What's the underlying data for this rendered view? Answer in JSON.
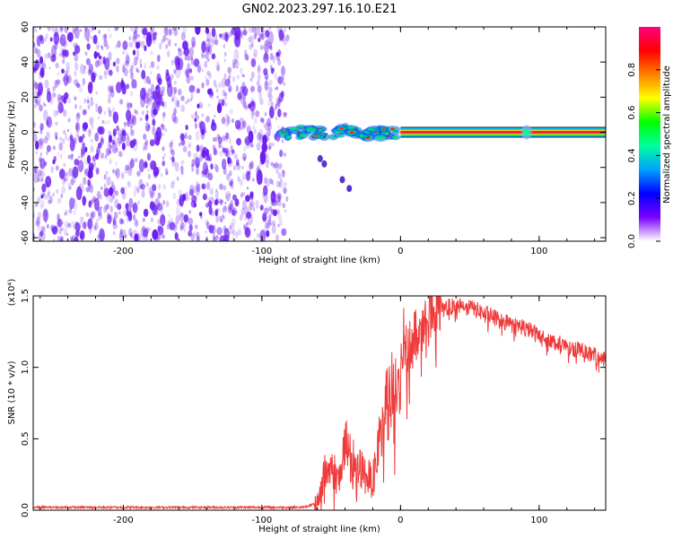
{
  "title": "GN02.2023.297.16.10.E21",
  "colors": {
    "snr_line": "#ef3a3a",
    "spectrogram_dots": "#6b1cf0",
    "frame": "#000000"
  },
  "chart_data": [
    {
      "type": "heatmap",
      "xlabel": "Height of straight line (km)",
      "ylabel": "Frequency (Hz)",
      "xlim": [
        -265,
        148
      ],
      "ylim": [
        -62,
        60
      ],
      "x_ticks": [
        "-200",
        "-100",
        "0",
        "100"
      ],
      "x_tick_values": [
        -200,
        -100,
        0,
        100
      ],
      "y_ticks": [
        "60",
        "40",
        "20",
        "0",
        "-20",
        "-40",
        "-60"
      ],
      "y_tick_values": [
        60,
        40,
        20,
        0,
        -20,
        -40,
        -60
      ],
      "colorbar": {
        "label": "Normalized spectral amplitude",
        "range": [
          0,
          1
        ],
        "ticks": [
          "0.0",
          "0.2",
          "0.4",
          "0.6",
          "0.8"
        ],
        "tick_values": [
          0.0,
          0.2,
          0.4,
          0.6,
          0.8
        ],
        "colormap": [
          "#ffffff",
          "#7a00ff",
          "#0000ff",
          "#00a0ff",
          "#00ffa0",
          "#00ff00",
          "#ffff00",
          "#ff8000",
          "#ff0000",
          "#ff0080"
        ]
      },
      "features": {
        "noise_region_x": [
          -265,
          -83
        ],
        "signal_frequency_hz": 0,
        "scattered_signal_x": [
          -85,
          0
        ],
        "continuous_signal_x": [
          0,
          148
        ],
        "secondary_blob_x": 91,
        "weak_tail": [
          [
            -58,
            -15
          ],
          [
            -55,
            -18
          ],
          [
            -42,
            -27
          ],
          [
            -37,
            -32
          ]
        ]
      },
      "grid": false
    },
    {
      "type": "line",
      "xlabel": "Height of straight line (km)",
      "ylabel": "SNR (10 * v/v)",
      "y_multiplier": "(x10⁴)",
      "xlim": [
        -265,
        148
      ],
      "ylim": [
        0,
        1.5
      ],
      "x_ticks": [
        "-200",
        "-100",
        "0",
        "100"
      ],
      "x_tick_values": [
        -200,
        -100,
        0,
        100
      ],
      "y_ticks": [
        "0.0",
        "0.5",
        "1.0",
        "1.5"
      ],
      "y_tick_values": [
        0.0,
        0.5,
        1.0,
        1.5
      ],
      "series": [
        {
          "x": [
            -265,
            -200,
            -150,
            -100,
            -70,
            -60,
            -55,
            -50,
            -45,
            -40,
            -35,
            -30,
            -25,
            -20,
            -15,
            -10,
            -5,
            0,
            5,
            10,
            15,
            20,
            25,
            30,
            40,
            50,
            60,
            70,
            80,
            90,
            100,
            110,
            120,
            130,
            140,
            148
          ],
          "y": [
            0.02,
            0.02,
            0.02,
            0.02,
            0.02,
            0.05,
            0.25,
            0.3,
            0.22,
            0.45,
            0.35,
            0.3,
            0.25,
            0.2,
            0.55,
            0.7,
            0.85,
            0.95,
            1.1,
            1.25,
            1.32,
            1.38,
            1.4,
            1.42,
            1.43,
            1.42,
            1.38,
            1.34,
            1.3,
            1.28,
            1.22,
            1.18,
            1.15,
            1.12,
            1.08,
            1.05
          ]
        }
      ],
      "grid": false
    }
  ]
}
